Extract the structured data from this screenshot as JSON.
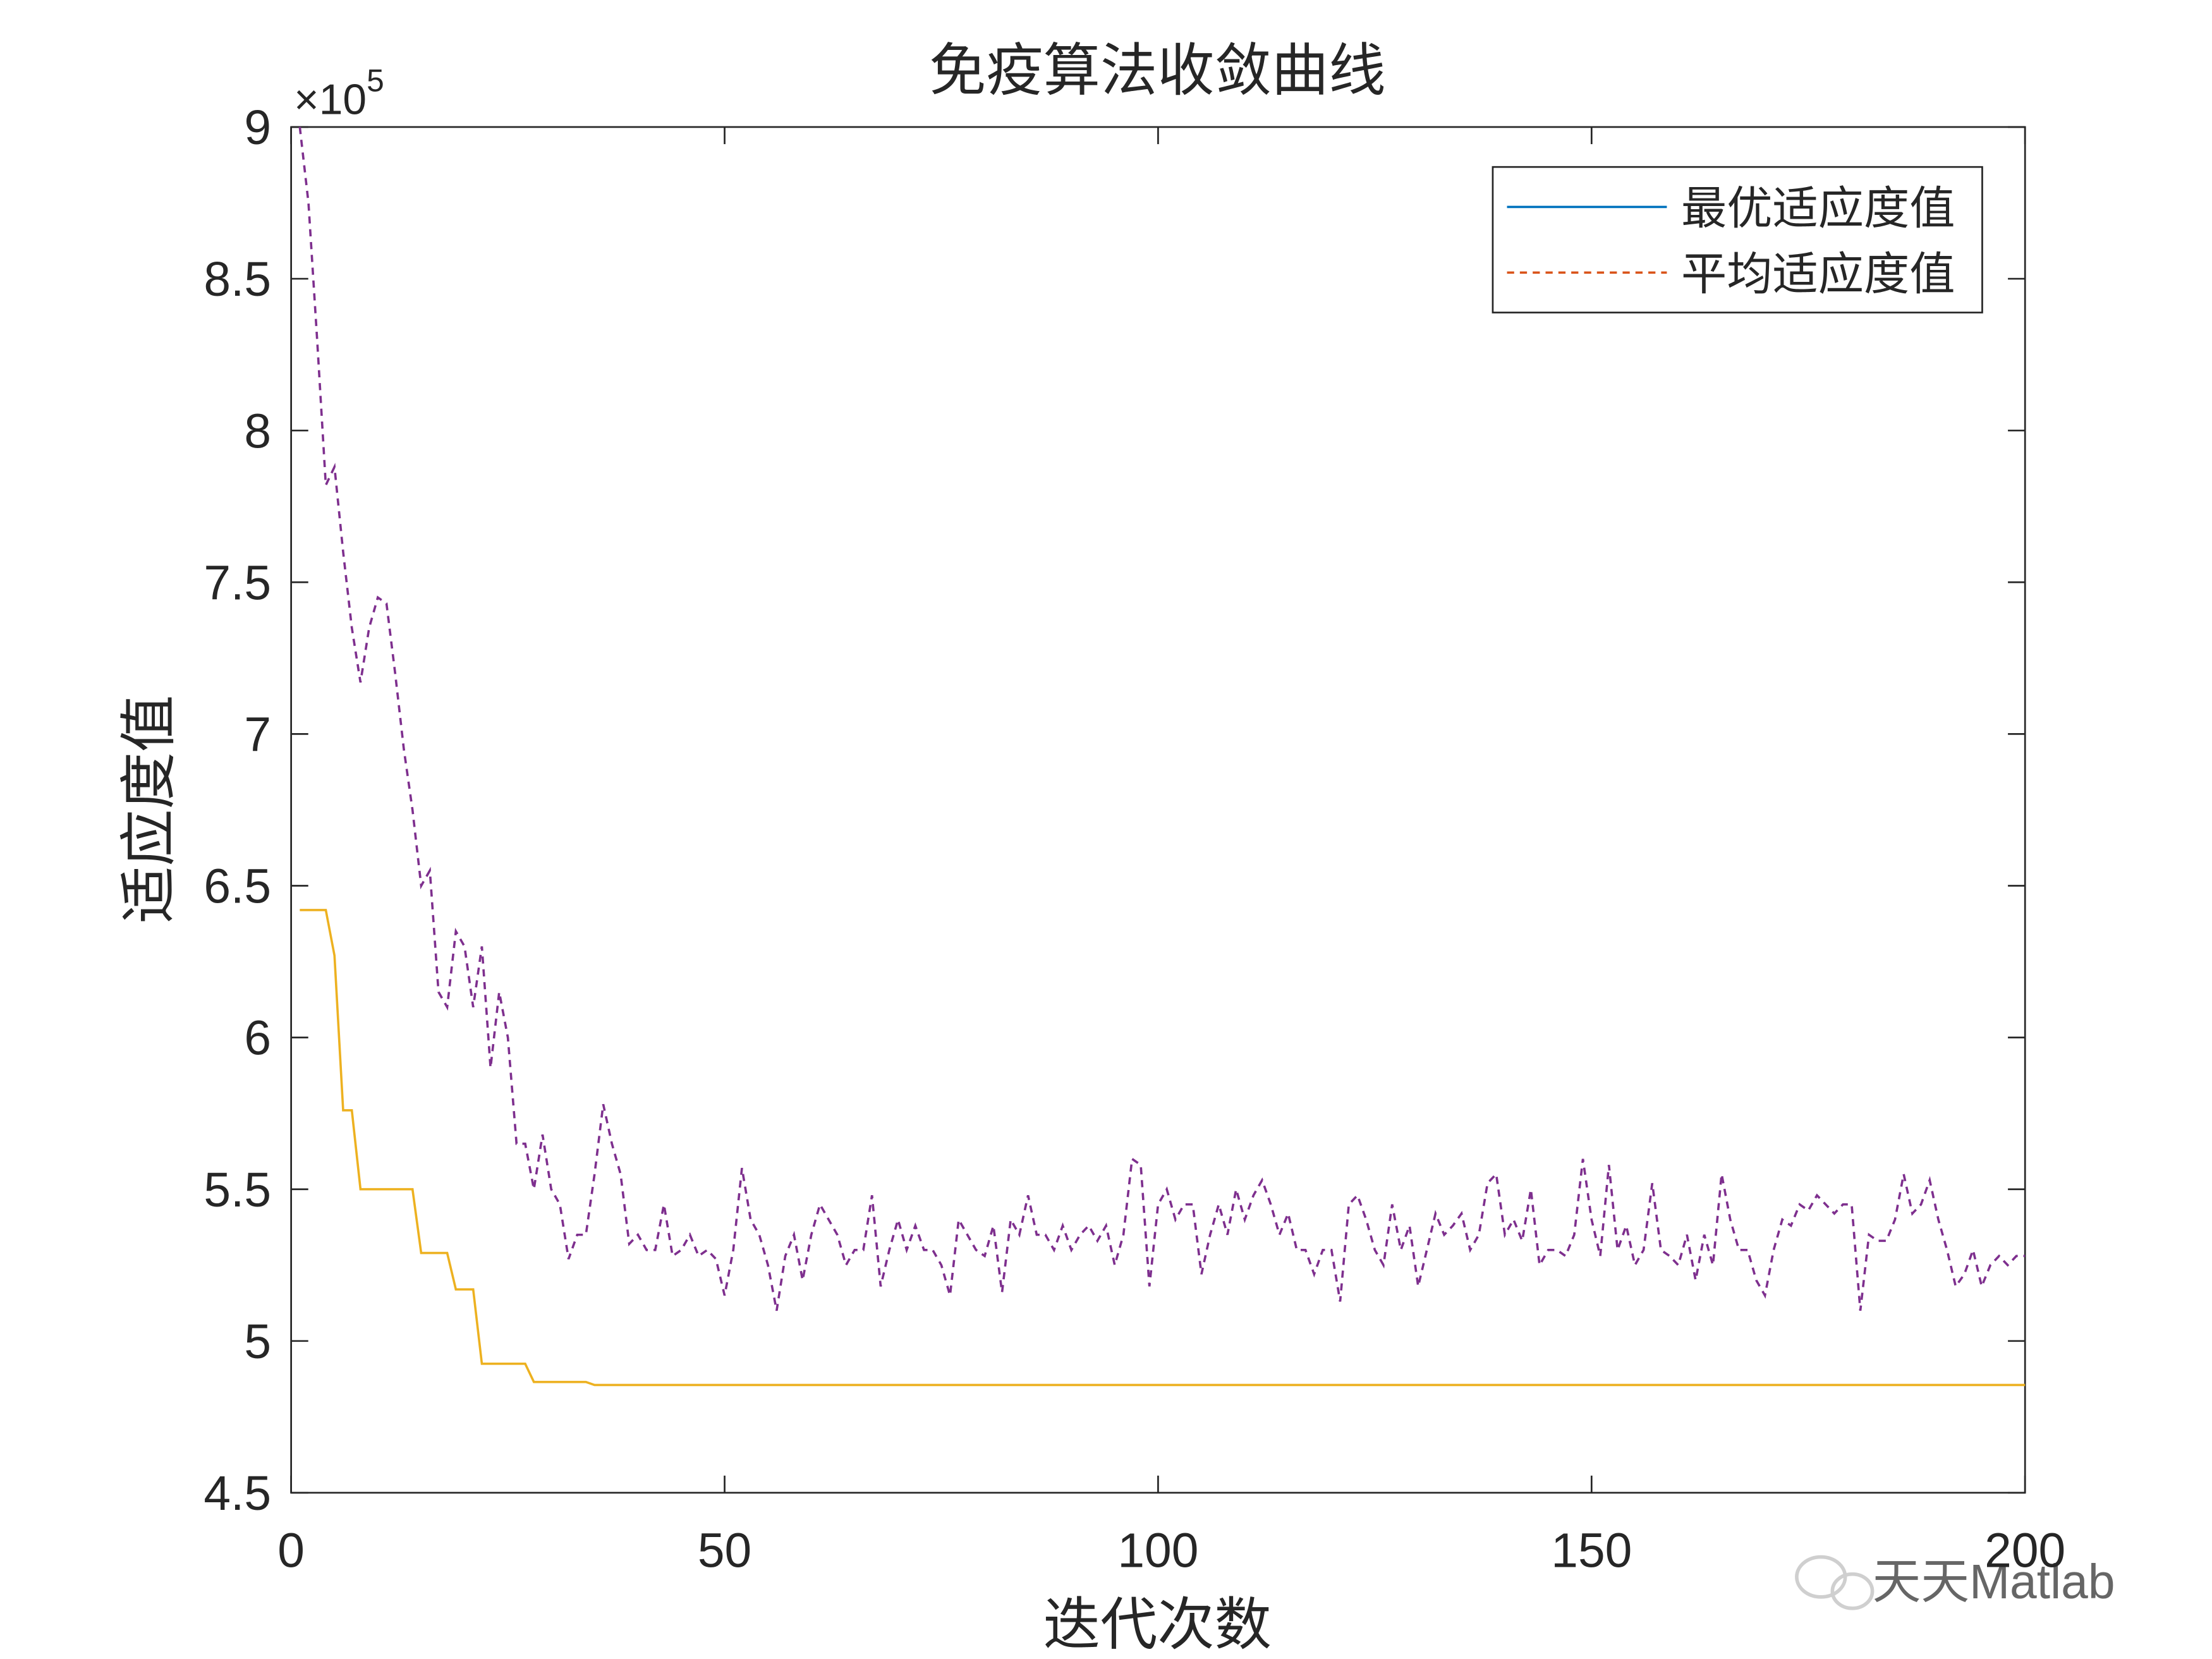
{
  "chart_data": {
    "type": "line",
    "title": "免疫算法收敛曲线",
    "xlabel": "迭代次数",
    "ylabel": "适应度值",
    "y_exponent": {
      "base": "×10",
      "power": "5"
    },
    "watermark": "天天Matlab",
    "legend": "upper right",
    "xlim": [
      0,
      200
    ],
    "xticks": [
      0,
      50,
      100,
      150,
      200
    ],
    "ylim": [
      4.5,
      9
    ],
    "yticks": [
      4.5,
      5,
      5.5,
      6,
      6.5,
      7,
      7.5,
      8,
      8.5,
      9
    ],
    "x": [
      1,
      2,
      3,
      4,
      5,
      6,
      7,
      8,
      9,
      10,
      11,
      12,
      13,
      14,
      15,
      16,
      17,
      18,
      19,
      20,
      21,
      22,
      23,
      24,
      25,
      26,
      27,
      28,
      29,
      30,
      31,
      32,
      33,
      34,
      35,
      36,
      37,
      38,
      39,
      40,
      41,
      42,
      43,
      44,
      45,
      46,
      47,
      48,
      49,
      50,
      51,
      52,
      53,
      54,
      55,
      56,
      57,
      58,
      59,
      60,
      61,
      62,
      63,
      64,
      65,
      66,
      67,
      68,
      69,
      70,
      71,
      72,
      73,
      74,
      75,
      76,
      77,
      78,
      79,
      80,
      81,
      82,
      83,
      84,
      85,
      86,
      87,
      88,
      89,
      90,
      91,
      92,
      93,
      94,
      95,
      96,
      97,
      98,
      99,
      100,
      101,
      102,
      103,
      104,
      105,
      106,
      107,
      108,
      109,
      110,
      111,
      112,
      113,
      114,
      115,
      116,
      117,
      118,
      119,
      120,
      121,
      122,
      123,
      124,
      125,
      126,
      127,
      128,
      129,
      130,
      131,
      132,
      133,
      134,
      135,
      136,
      137,
      138,
      139,
      140,
      141,
      142,
      143,
      144,
      145,
      146,
      147,
      148,
      149,
      150,
      151,
      152,
      153,
      154,
      155,
      156,
      157,
      158,
      159,
      160,
      161,
      162,
      163,
      164,
      165,
      166,
      167,
      168,
      169,
      170,
      171,
      172,
      173,
      174,
      175,
      176,
      177,
      178,
      179,
      180,
      181,
      182,
      183,
      184,
      185,
      186,
      187,
      188,
      189,
      190,
      191,
      192,
      193,
      194,
      195,
      196,
      197,
      198,
      199,
      200
    ],
    "series": [
      {
        "name": "最优适应度值",
        "color": "#edb120",
        "legend_color": "#0072bd",
        "line_style": "solid",
        "values": [
          6.42,
          6.42,
          6.42,
          6.42,
          6.27,
          5.76,
          5.76,
          5.5,
          5.5,
          5.5,
          5.5,
          5.5,
          5.5,
          5.5,
          5.29,
          5.29,
          5.29,
          5.29,
          5.17,
          5.17,
          5.17,
          4.925,
          4.925,
          4.925,
          4.925,
          4.925,
          4.925,
          4.865,
          4.865,
          4.865,
          4.865,
          4.865,
          4.865,
          4.865,
          4.855,
          4.855,
          4.855,
          4.855,
          4.855,
          4.855,
          4.855,
          4.855,
          4.855,
          4.855,
          4.855,
          4.855,
          4.855,
          4.855,
          4.855,
          4.855,
          4.855,
          4.855,
          4.855,
          4.855,
          4.855,
          4.855,
          4.855,
          4.855,
          4.855,
          4.855,
          4.855,
          4.855,
          4.855,
          4.855,
          4.855,
          4.855,
          4.855,
          4.855,
          4.855,
          4.855,
          4.855,
          4.855,
          4.855,
          4.855,
          4.855,
          4.855,
          4.855,
          4.855,
          4.855,
          4.855,
          4.855,
          4.855,
          4.855,
          4.855,
          4.855,
          4.855,
          4.855,
          4.855,
          4.855,
          4.855,
          4.855,
          4.855,
          4.855,
          4.855,
          4.855,
          4.855,
          4.855,
          4.855,
          4.855,
          4.855,
          4.855,
          4.855,
          4.855,
          4.855,
          4.855,
          4.855,
          4.855,
          4.855,
          4.855,
          4.855,
          4.855,
          4.855,
          4.855,
          4.855,
          4.855,
          4.855,
          4.855,
          4.855,
          4.855,
          4.855,
          4.855,
          4.855,
          4.855,
          4.855,
          4.855,
          4.855,
          4.855,
          4.855,
          4.855,
          4.855,
          4.855,
          4.855,
          4.855,
          4.855,
          4.855,
          4.855,
          4.855,
          4.855,
          4.855,
          4.855,
          4.855,
          4.855,
          4.855,
          4.855,
          4.855,
          4.855,
          4.855,
          4.855,
          4.855,
          4.855,
          4.855,
          4.855,
          4.855,
          4.855,
          4.855,
          4.855,
          4.855,
          4.855,
          4.855,
          4.855,
          4.855,
          4.855,
          4.855,
          4.855,
          4.855,
          4.855,
          4.855,
          4.855,
          4.855,
          4.855,
          4.855,
          4.855,
          4.855,
          4.855,
          4.855,
          4.855,
          4.855,
          4.855,
          4.855,
          4.855,
          4.855,
          4.855,
          4.855,
          4.855,
          4.855,
          4.855,
          4.855,
          4.855,
          4.855,
          4.855,
          4.855,
          4.855,
          4.855,
          4.855,
          4.855,
          4.855,
          4.855,
          4.855,
          4.855,
          4.855
        ]
      },
      {
        "name": "平均适应度值",
        "color": "#7e2f8e",
        "legend_color": "#d95319",
        "line_style": "dashed",
        "values": [
          9.0,
          8.75,
          8.3,
          7.82,
          7.88,
          7.6,
          7.35,
          7.17,
          7.35,
          7.45,
          7.43,
          7.2,
          6.95,
          6.75,
          6.5,
          6.55,
          6.15,
          6.1,
          6.35,
          6.3,
          6.1,
          6.3,
          5.9,
          6.15,
          6.0,
          5.65,
          5.65,
          5.5,
          5.68,
          5.5,
          5.45,
          5.27,
          5.35,
          5.35,
          5.55,
          5.78,
          5.65,
          5.55,
          5.32,
          5.35,
          5.3,
          5.3,
          5.45,
          5.28,
          5.3,
          5.35,
          5.28,
          5.3,
          5.27,
          5.15,
          5.3,
          5.57,
          5.4,
          5.35,
          5.25,
          5.1,
          5.28,
          5.35,
          5.2,
          5.35,
          5.45,
          5.4,
          5.35,
          5.25,
          5.3,
          5.3,
          5.48,
          5.18,
          5.3,
          5.4,
          5.3,
          5.38,
          5.3,
          5.3,
          5.25,
          5.15,
          5.4,
          5.35,
          5.3,
          5.28,
          5.38,
          5.16,
          5.4,
          5.35,
          5.48,
          5.35,
          5.35,
          5.3,
          5.38,
          5.3,
          5.35,
          5.38,
          5.33,
          5.38,
          5.25,
          5.35,
          5.6,
          5.58,
          5.18,
          5.45,
          5.5,
          5.4,
          5.45,
          5.45,
          5.22,
          5.35,
          5.45,
          5.35,
          5.5,
          5.4,
          5.48,
          5.53,
          5.45,
          5.35,
          5.42,
          5.3,
          5.3,
          5.22,
          5.3,
          5.3,
          5.13,
          5.45,
          5.48,
          5.4,
          5.3,
          5.25,
          5.45,
          5.3,
          5.38,
          5.18,
          5.3,
          5.42,
          5.35,
          5.38,
          5.42,
          5.3,
          5.35,
          5.52,
          5.55,
          5.35,
          5.4,
          5.33,
          5.5,
          5.25,
          5.3,
          5.3,
          5.28,
          5.35,
          5.6,
          5.4,
          5.28,
          5.58,
          5.3,
          5.38,
          5.25,
          5.3,
          5.52,
          5.3,
          5.28,
          5.25,
          5.35,
          5.2,
          5.35,
          5.25,
          5.55,
          5.4,
          5.3,
          5.3,
          5.2,
          5.15,
          5.3,
          5.4,
          5.38,
          5.45,
          5.43,
          5.48,
          5.45,
          5.42,
          5.45,
          5.45,
          5.1,
          5.35,
          5.33,
          5.33,
          5.4,
          5.55,
          5.42,
          5.45,
          5.53,
          5.4,
          5.3,
          5.18,
          5.22,
          5.3,
          5.18,
          5.25,
          5.28,
          5.25,
          5.28,
          5.28
        ]
      }
    ]
  }
}
